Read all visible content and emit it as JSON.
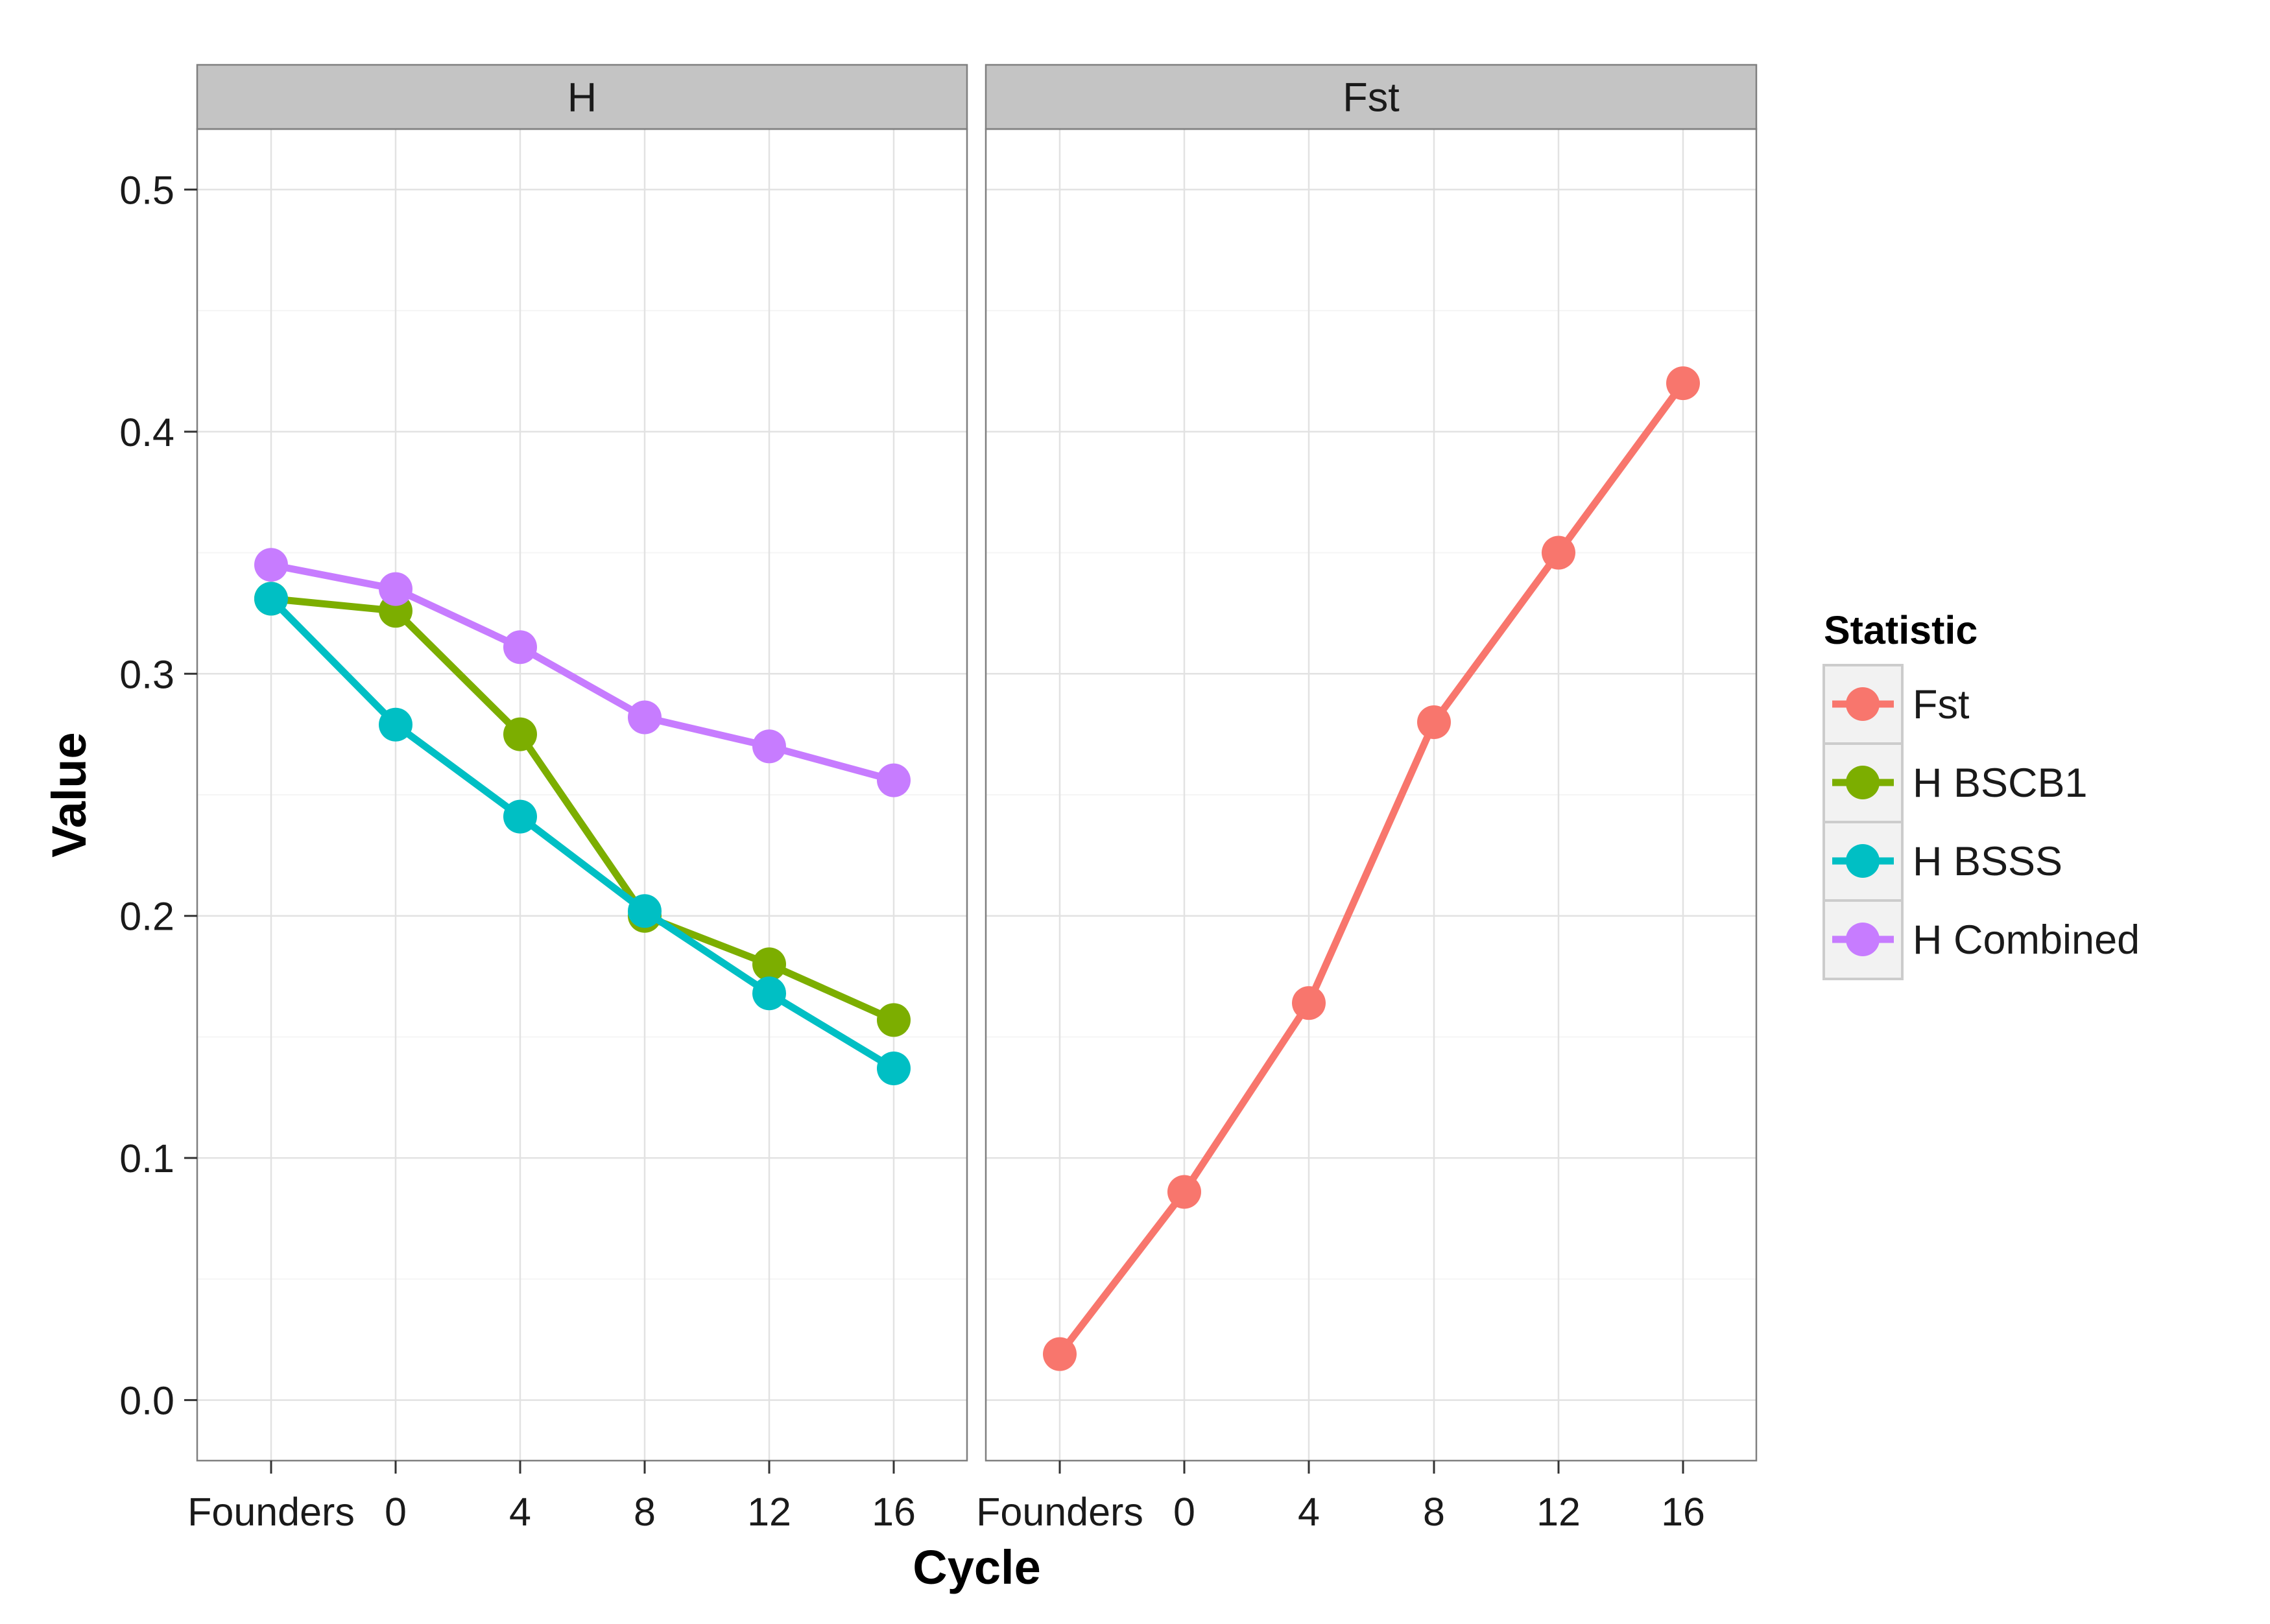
{
  "chart_data": {
    "type": "line",
    "xlabel": "Cycle",
    "ylabel": "Value",
    "ylim": [
      -0.025,
      0.525
    ],
    "y_ticks": [
      "0.0",
      "0.1",
      "0.2",
      "0.3",
      "0.4",
      "0.5"
    ],
    "y_tick_values": [
      0,
      0.1,
      0.2,
      0.3,
      0.4,
      0.5
    ],
    "categories": [
      "Founders",
      "0",
      "4",
      "8",
      "12",
      "16"
    ],
    "legend": {
      "title": "Statistic",
      "position": "right",
      "entries": [
        {
          "name": "Fst",
          "color": "#f8766d"
        },
        {
          "name": "H BSCB1",
          "color": "#7cae00"
        },
        {
          "name": "H BSSS",
          "color": "#00bfc4"
        },
        {
          "name": "H Combined",
          "color": "#c77cff"
        }
      ]
    },
    "grid": true,
    "panels": [
      {
        "strip": "H",
        "series": [
          {
            "name": "H BSCB1",
            "color": "#7cae00",
            "values": [
              0.331,
              0.326,
              0.275,
              0.2,
              0.18,
              0.157
            ]
          },
          {
            "name": "H BSSS",
            "color": "#00bfc4",
            "values": [
              0.331,
              0.279,
              0.241,
              0.202,
              0.168,
              0.137
            ]
          },
          {
            "name": "H Combined",
            "color": "#c77cff",
            "values": [
              0.345,
              0.335,
              0.311,
              0.282,
              0.27,
              0.256
            ]
          }
        ]
      },
      {
        "strip": "Fst",
        "series": [
          {
            "name": "Fst",
            "color": "#f8766d",
            "values": [
              0.019,
              0.086,
              0.164,
              0.28,
              0.35,
              0.42
            ]
          }
        ]
      }
    ]
  }
}
